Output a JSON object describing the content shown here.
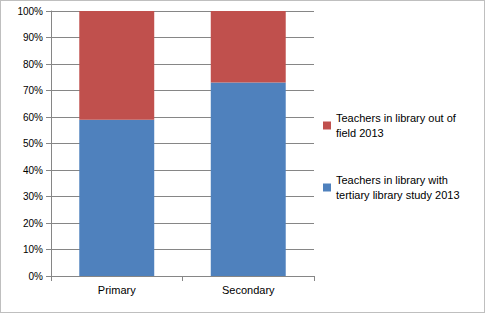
{
  "chart_data": {
    "type": "bar",
    "stacked": true,
    "grid": true,
    "legend": "right",
    "categories": [
      "Primary",
      "Secondary"
    ],
    "series": [
      {
        "name": "Teachers in library with tertiary library study 2013",
        "color": "#4f81bd",
        "values": [
          59,
          73
        ]
      },
      {
        "name": "Teachers in library out of field 2013",
        "color": "#c0504d",
        "values": [
          41,
          27
        ]
      }
    ],
    "ylim": [
      0,
      100
    ],
    "yticks": [
      {
        "value": 0,
        "label": "0%"
      },
      {
        "value": 10,
        "label": "10%"
      },
      {
        "value": 20,
        "label": "20%"
      },
      {
        "value": 30,
        "label": "30%"
      },
      {
        "value": 40,
        "label": "40%"
      },
      {
        "value": 50,
        "label": "50%"
      },
      {
        "value": 60,
        "label": "60%"
      },
      {
        "value": 70,
        "label": "70%"
      },
      {
        "value": 80,
        "label": "80%"
      },
      {
        "value": 90,
        "label": "90%"
      },
      {
        "value": 100,
        "label": "100%"
      }
    ]
  }
}
